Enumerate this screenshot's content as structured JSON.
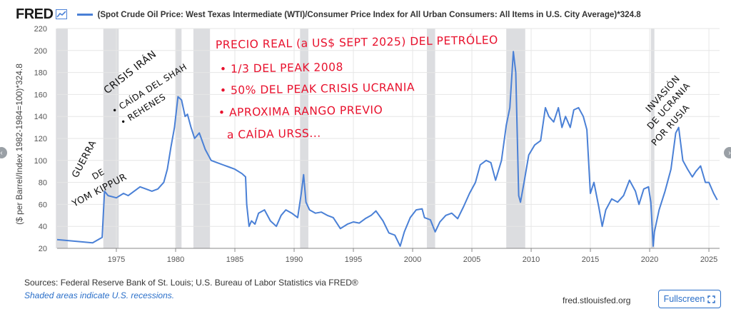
{
  "header": {
    "logo": "FRED",
    "series_title": "(Spot Crude Oil Price: West Texas Intermediate (WTI)/Consumer Price Index for All Urban Consumers: All Items in U.S. City Average)*324.8"
  },
  "footer": {
    "sources": "Sources: Federal Reserve Bank of St. Louis; U.S. Bureau of Labor Statistics via FRED®",
    "shaded_note": "Shaded areas indicate U.S. recessions.",
    "site": "fred.stlouisfed.org",
    "fullscreen_label": "Fullscreen"
  },
  "colors": {
    "line": "#4a80d6",
    "recession": "#dcdde0",
    "annotation_red": "#e8112d",
    "annotation_black": "#111111"
  },
  "chart_data": {
    "type": "line",
    "ylabel": "($ per Barrel/Index 1982-1984=100)*324.8",
    "ylim": [
      20,
      220
    ],
    "xlim": [
      1970.0,
      2025.9
    ],
    "yticks": [
      20,
      40,
      60,
      80,
      100,
      120,
      140,
      160,
      180,
      200,
      220
    ],
    "xticks": [
      1975,
      1980,
      1985,
      1990,
      1995,
      2000,
      2005,
      2010,
      2015,
      2020,
      2025
    ],
    "grid": true,
    "recessions": [
      [
        1969.9,
        1970.9
      ],
      [
        1973.9,
        1975.2
      ],
      [
        1980.0,
        1980.5
      ],
      [
        1981.5,
        1982.9
      ],
      [
        1990.5,
        1991.2
      ],
      [
        2001.2,
        2001.9
      ],
      [
        2007.9,
        2009.5
      ],
      [
        2020.1,
        2020.4
      ]
    ],
    "series": [
      {
        "x": [
          1970.0,
          1971.0,
          1972.0,
          1973.0,
          1973.8,
          1974.0,
          1974.3,
          1975.0,
          1975.6,
          1976.0,
          1976.5,
          1977.0,
          1977.5,
          1978.0,
          1978.5,
          1979.0,
          1979.3,
          1979.6,
          1979.9,
          1980.2,
          1980.5,
          1980.8,
          1981.0,
          1981.3,
          1981.6,
          1982.0,
          1982.5,
          1983.0,
          1983.5,
          1984.0,
          1984.5,
          1985.0,
          1985.6,
          1985.9,
          1986.0,
          1986.2,
          1986.4,
          1986.7,
          1987.0,
          1987.5,
          1988.0,
          1988.5,
          1988.9,
          1989.3,
          1989.8,
          1990.3,
          1990.6,
          1990.8,
          1991.0,
          1991.3,
          1991.8,
          1992.3,
          1992.8,
          1993.3,
          1993.9,
          1994.5,
          1995.0,
          1995.5,
          1996.0,
          1996.5,
          1996.9,
          1997.5,
          1998.0,
          1998.5,
          1998.95,
          1999.3,
          1999.8,
          2000.3,
          2000.8,
          2001.0,
          2001.5,
          2001.9,
          2002.3,
          2002.8,
          2003.3,
          2003.8,
          2004.3,
          2004.8,
          2005.3,
          2005.7,
          2006.2,
          2006.6,
          2007.0,
          2007.5,
          2007.9,
          2008.2,
          2008.5,
          2008.7,
          2008.95,
          2009.1,
          2009.4,
          2009.8,
          2010.3,
          2010.8,
          2011.2,
          2011.5,
          2011.9,
          2012.3,
          2012.6,
          2012.9,
          2013.3,
          2013.6,
          2014.0,
          2014.4,
          2014.7,
          2015.0,
          2015.3,
          2015.7,
          2016.0,
          2016.3,
          2016.8,
          2017.3,
          2017.8,
          2018.3,
          2018.8,
          2019.1,
          2019.5,
          2019.9,
          2020.1,
          2020.3,
          2020.4,
          2020.8,
          2021.3,
          2021.8,
          2022.2,
          2022.45,
          2022.8,
          2023.2,
          2023.6,
          2023.9,
          2024.3,
          2024.7,
          2025.0,
          2025.4,
          2025.7
        ],
        "y": [
          28,
          27,
          26,
          25,
          30,
          72,
          68,
          66,
          70,
          68,
          72,
          76,
          74,
          72,
          74,
          80,
          92,
          112,
          130,
          158,
          155,
          140,
          142,
          130,
          120,
          125,
          110,
          100,
          98,
          96,
          94,
          92,
          88,
          85,
          60,
          40,
          45,
          42,
          52,
          55,
          45,
          40,
          50,
          55,
          52,
          48,
          70,
          87,
          62,
          55,
          52,
          53,
          50,
          48,
          38,
          42,
          44,
          43,
          47,
          50,
          54,
          45,
          34,
          32,
          22,
          35,
          48,
          55,
          56,
          48,
          46,
          35,
          44,
          50,
          52,
          47,
          58,
          70,
          80,
          96,
          100,
          98,
          82,
          100,
          132,
          148,
          199,
          180,
          68,
          62,
          80,
          105,
          114,
          118,
          148,
          140,
          135,
          148,
          130,
          140,
          130,
          146,
          148,
          140,
          128,
          70,
          80,
          58,
          40,
          55,
          65,
          62,
          68,
          82,
          72,
          60,
          74,
          76,
          62,
          22,
          35,
          55,
          72,
          92,
          125,
          130,
          100,
          92,
          85,
          90,
          95,
          80,
          80,
          70,
          64
        ]
      }
    ]
  },
  "annotations": {
    "red_lines": [
      "PRECIO REAL (a US$ SEPT 2025) DEL PETRÓLEO",
      "• 1/3 DEL PEAK 2008",
      "• 50% DEL PEAK CRISIS UCRANIA",
      "• APROXIMA RANGO PREVIO",
      "a CAÍDA URSS..."
    ],
    "yom_kippur": [
      "GUERRA",
      "DE",
      "YOM KIPPUR"
    ],
    "iran": [
      "CRISIS IRÁN",
      "• CAÍDA DEL SHAH",
      "• REHENES"
    ],
    "ukraine": [
      "INVASIÓN",
      "DE UCRANIA",
      "POR RUSIA"
    ]
  }
}
